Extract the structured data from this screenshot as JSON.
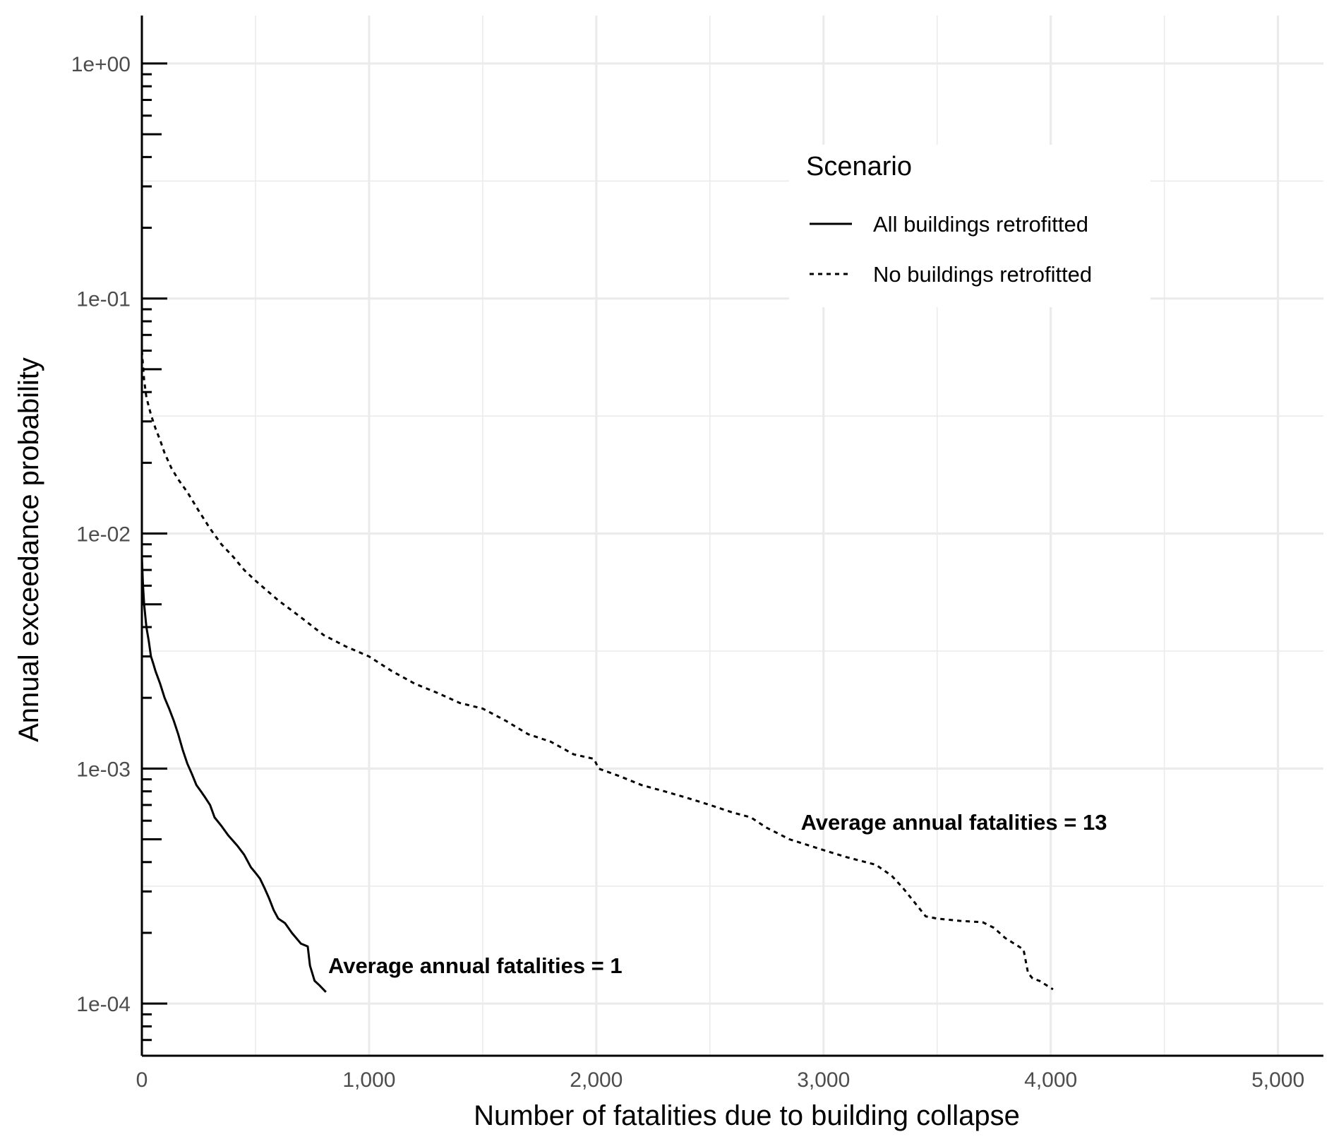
{
  "chart_data": {
    "type": "line",
    "title": "",
    "xlabel": "Number of fatalities due to building collapse",
    "ylabel": "Annual exceedance probability",
    "xlim": [
      0,
      5200
    ],
    "ylim": [
      6e-05,
      1.6
    ],
    "y_scale": "log",
    "x_ticks": [
      0,
      1000,
      2000,
      3000,
      4000,
      5000
    ],
    "x_tick_labels": [
      "0",
      "1,000",
      "2,000",
      "3,000",
      "4,000",
      "5,000"
    ],
    "y_ticks": [
      1,
      0.1,
      0.01,
      0.001,
      0.0001
    ],
    "y_tick_labels": [
      "1e+00",
      "1e-01",
      "1e-02",
      "1e-03",
      "1e-04"
    ],
    "grid": true,
    "legend": {
      "title": "Scenario",
      "position": "top-right",
      "entries": [
        {
          "label": "All buildings retrofitted",
          "style": "solid"
        },
        {
          "label": "No buildings retrofitted",
          "style": "dashed"
        }
      ]
    },
    "series": [
      {
        "name": "All buildings retrofitted",
        "style": "solid",
        "color": "#000000",
        "x": [
          0,
          5,
          10,
          20,
          30,
          40,
          50,
          60,
          80,
          100,
          120,
          140,
          160,
          180,
          200,
          220,
          240,
          260,
          280,
          300,
          320,
          350,
          380,
          420,
          450,
          480,
          500,
          520,
          540,
          560,
          580,
          600,
          630,
          660,
          700,
          730,
          740,
          760,
          780,
          810
        ],
        "y": [
          0.008,
          0.006,
          0.005,
          0.004,
          0.0035,
          0.003,
          0.0028,
          0.0026,
          0.0023,
          0.002,
          0.0018,
          0.0016,
          0.0014,
          0.0012,
          0.00105,
          0.00095,
          0.00085,
          0.0008,
          0.00075,
          0.0007,
          0.00062,
          0.00057,
          0.00052,
          0.00047,
          0.00043,
          0.00038,
          0.00036,
          0.00034,
          0.00031,
          0.00028,
          0.00025,
          0.00023,
          0.00022,
          0.0002,
          0.00018,
          0.000175,
          0.000145,
          0.000125,
          0.00012,
          0.000112
        ]
      },
      {
        "name": "No buildings retrofitted",
        "style": "dashed",
        "color": "#000000",
        "x": [
          0,
          10,
          20,
          40,
          60,
          80,
          100,
          130,
          160,
          200,
          250,
          300,
          350,
          400,
          450,
          500,
          600,
          700,
          800,
          900,
          1000,
          1100,
          1200,
          1300,
          1400,
          1500,
          1600,
          1700,
          1800,
          1900,
          1990,
          2010,
          2100,
          2200,
          2300,
          2400,
          2500,
          2600,
          2680,
          2750,
          2850,
          3000,
          3100,
          3230,
          3300,
          3350,
          3400,
          3450,
          3500,
          3600,
          3700,
          3750,
          3800,
          3880,
          3900,
          3920,
          3950,
          4010
        ],
        "y": [
          0.06,
          0.045,
          0.038,
          0.032,
          0.028,
          0.025,
          0.022,
          0.019,
          0.017,
          0.015,
          0.0125,
          0.0105,
          0.009,
          0.008,
          0.007,
          0.0063,
          0.0052,
          0.0044,
          0.0037,
          0.0033,
          0.003,
          0.0026,
          0.0023,
          0.0021,
          0.0019,
          0.0018,
          0.0016,
          0.0014,
          0.0013,
          0.00115,
          0.0011,
          0.001,
          0.00093,
          0.00085,
          0.0008,
          0.00075,
          0.0007,
          0.00065,
          0.00062,
          0.00056,
          0.0005,
          0.00045,
          0.00042,
          0.00039,
          0.00035,
          0.00031,
          0.00027,
          0.000235,
          0.00023,
          0.000225,
          0.000222,
          0.00021,
          0.00019,
          0.00017,
          0.000135,
          0.000128,
          0.000125,
          0.000115
        ]
      }
    ],
    "annotations": [
      {
        "text": "Average annual fatalities = 1",
        "x": 820,
        "y": 0.000135
      },
      {
        "text": "Average annual fatalities = 13",
        "x": 2900,
        "y": 0.00055
      }
    ]
  }
}
